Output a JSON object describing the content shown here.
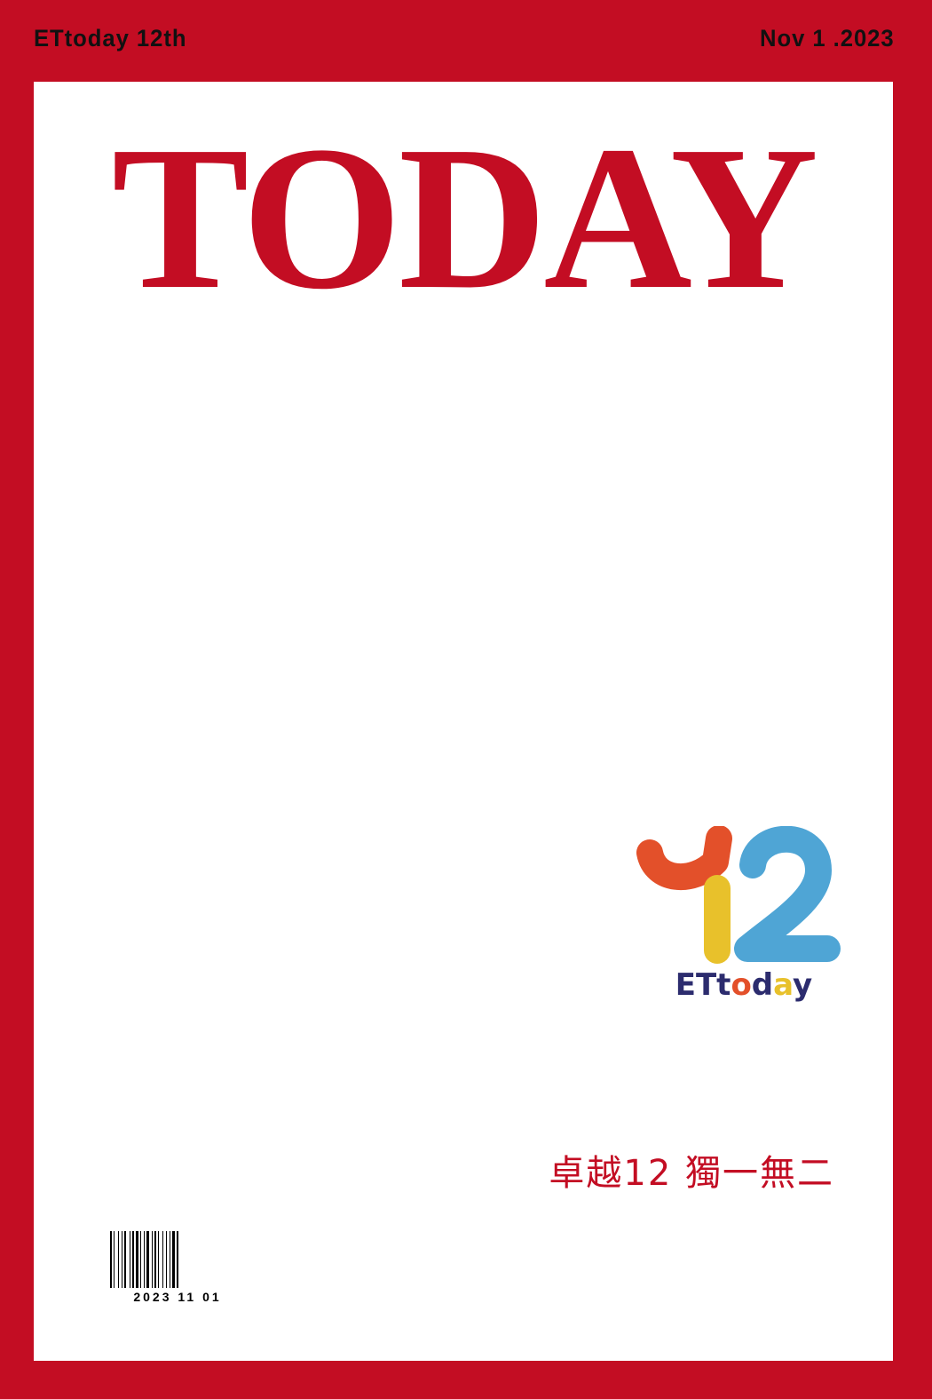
{
  "header": {
    "left_text": "ETtoday 12th",
    "right_text": "Nov 1 .2023"
  },
  "cover": {
    "masthead": "TODAY",
    "tagline": "卓越12 獨一無二"
  },
  "logo": {
    "number": "12",
    "wordmark": "ETtoday",
    "colors": {
      "one_top": "#e3502a",
      "one_stem": "#e8c12b",
      "two": "#4fa5d5",
      "wordmark": "#2c2c6e"
    }
  },
  "barcode": {
    "number": "2023 11 01"
  },
  "colors": {
    "frame": "#c30d23",
    "panel": "#ffffff",
    "accent_text": "#c30d23"
  }
}
